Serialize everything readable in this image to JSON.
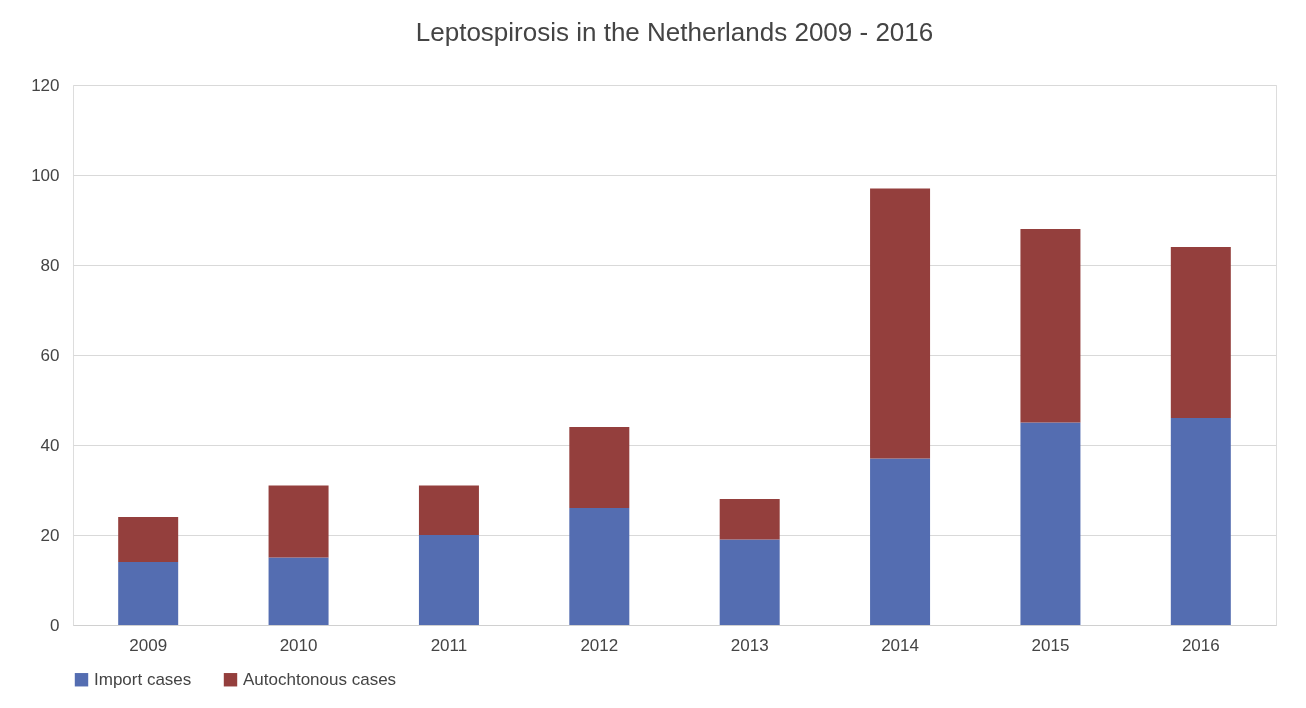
{
  "chart_data": {
    "type": "bar",
    "title": "Leptospirosis  in the Netherlands 2009 - 2016",
    "stacked": true,
    "categories": [
      "2009",
      "2010",
      "2011",
      "2012",
      "2013",
      "2014",
      "2015",
      "2016"
    ],
    "series": [
      {
        "name": "Import cases",
        "color": "#546db1",
        "values": [
          14,
          15,
          20,
          26,
          19,
          37,
          45,
          46
        ]
      },
      {
        "name": "Autochtonous cases",
        "color": "#943f3d",
        "values": [
          10,
          16,
          11,
          18,
          9,
          60,
          43,
          38
        ]
      }
    ],
    "ylim": [
      0,
      120
    ],
    "yticks": [
      0,
      20,
      40,
      60,
      80,
      100,
      120
    ],
    "grid": "y",
    "legend": "bottom"
  }
}
